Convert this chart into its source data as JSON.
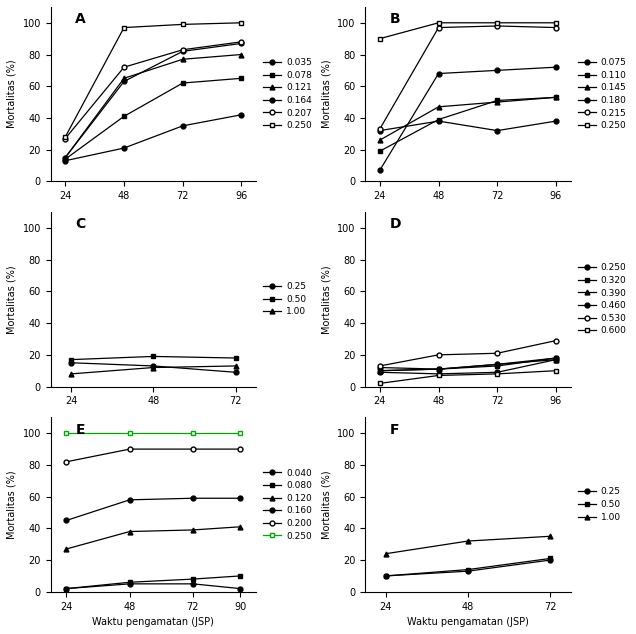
{
  "panels": {
    "A": {
      "x": [
        24,
        48,
        72,
        96
      ],
      "series": [
        {
          "label": "0.035",
          "y": [
            13,
            21,
            35,
            42
          ],
          "marker": "o",
          "linestyle": "-"
        },
        {
          "label": "0.078",
          "y": [
            14,
            41,
            62,
            65
          ],
          "marker": "s",
          "linestyle": "-"
        },
        {
          "label": "0.121",
          "y": [
            15,
            65,
            77,
            80
          ],
          "marker": "^",
          "linestyle": "-"
        },
        {
          "label": "0.164",
          "y": [
            15,
            63,
            82,
            87
          ],
          "marker": "o",
          "linestyle": "-"
        },
        {
          "label": "0.207",
          "y": [
            27,
            72,
            83,
            88
          ],
          "marker": "o",
          "linestyle": "-",
          "open": true
        },
        {
          "label": "0.250",
          "y": [
            28,
            97,
            99,
            100
          ],
          "marker": "s",
          "linestyle": "-",
          "open": true
        }
      ],
      "ylabel": "Mortalitas (%)",
      "xlabel": "",
      "xlim": [
        18,
        102
      ],
      "ylim": [
        0,
        110
      ],
      "xticks": [
        24,
        48,
        72,
        96
      ],
      "yticks": [
        0,
        20,
        40,
        60,
        80,
        100
      ],
      "label": "A"
    },
    "B": {
      "x": [
        24,
        48,
        72,
        96
      ],
      "series": [
        {
          "label": "0.075",
          "y": [
            7,
            68,
            70,
            72
          ],
          "marker": "o",
          "linestyle": "-"
        },
        {
          "label": "0.110",
          "y": [
            19,
            39,
            51,
            53
          ],
          "marker": "s",
          "linestyle": "-"
        },
        {
          "label": "0.145",
          "y": [
            26,
            47,
            50,
            53
          ],
          "marker": "^",
          "linestyle": "-"
        },
        {
          "label": "0.180",
          "y": [
            32,
            38,
            32,
            38
          ],
          "marker": "o",
          "linestyle": "-"
        },
        {
          "label": "0.215",
          "y": [
            33,
            97,
            98,
            97
          ],
          "marker": "o",
          "linestyle": "-",
          "open": true
        },
        {
          "label": "0.250",
          "y": [
            90,
            100,
            100,
            100
          ],
          "marker": "s",
          "linestyle": "-",
          "open": true
        }
      ],
      "ylabel": "Mortalitas (%)",
      "xlabel": "",
      "xlim": [
        18,
        102
      ],
      "ylim": [
        0,
        110
      ],
      "xticks": [
        24,
        48,
        72,
        96
      ],
      "yticks": [
        0,
        20,
        40,
        60,
        80,
        100
      ],
      "label": "B"
    },
    "C": {
      "x": [
        24,
        48,
        72
      ],
      "series": [
        {
          "label": "0.25",
          "y": [
            15,
            13,
            9
          ],
          "marker": "o",
          "linestyle": "-"
        },
        {
          "label": "0.50",
          "y": [
            17,
            19,
            18
          ],
          "marker": "s",
          "linestyle": "-"
        },
        {
          "label": "1.00",
          "y": [
            8,
            12,
            13
          ],
          "marker": "^",
          "linestyle": "-"
        }
      ],
      "ylabel": "Mortalitas (%)",
      "xlabel": "",
      "xlim": [
        18,
        78
      ],
      "ylim": [
        0,
        110
      ],
      "xticks": [
        24,
        48,
        72
      ],
      "yticks": [
        0,
        20,
        40,
        60,
        80,
        100
      ],
      "label": "C"
    },
    "D": {
      "x": [
        24,
        48,
        72,
        96
      ],
      "series": [
        {
          "label": "0.250",
          "y": [
            12,
            11,
            14,
            18
          ],
          "marker": "o",
          "linestyle": "-"
        },
        {
          "label": "0.320",
          "y": [
            10,
            11,
            13,
            18
          ],
          "marker": "s",
          "linestyle": "-"
        },
        {
          "label": "0.390",
          "y": [
            10,
            11,
            14,
            17
          ],
          "marker": "^",
          "linestyle": "-"
        },
        {
          "label": "0.460",
          "y": [
            9,
            8,
            9,
            17
          ],
          "marker": "o",
          "linestyle": "-"
        },
        {
          "label": "0.530",
          "y": [
            13,
            20,
            21,
            29
          ],
          "marker": "o",
          "linestyle": "-",
          "open": true
        },
        {
          "label": "0.600",
          "y": [
            2,
            7,
            8,
            10
          ],
          "marker": "s",
          "linestyle": "-",
          "open": true
        }
      ],
      "ylabel": "Mortalitas (%)",
      "xlabel": "",
      "xlim": [
        18,
        102
      ],
      "ylim": [
        0,
        110
      ],
      "xticks": [
        24,
        48,
        72,
        96
      ],
      "yticks": [
        0,
        20,
        40,
        60,
        80,
        100
      ],
      "label": "D"
    },
    "E": {
      "x": [
        24,
        48,
        72,
        90
      ],
      "series": [
        {
          "label": "0.040",
          "y": [
            2,
            5,
            5,
            2
          ],
          "marker": "o",
          "linestyle": "-"
        },
        {
          "label": "0.080",
          "y": [
            2,
            6,
            8,
            10
          ],
          "marker": "s",
          "linestyle": "-"
        },
        {
          "label": "0.120",
          "y": [
            27,
            38,
            39,
            41
          ],
          "marker": "^",
          "linestyle": "-"
        },
        {
          "label": "0.160",
          "y": [
            45,
            58,
            59,
            59
          ],
          "marker": "o",
          "linestyle": "-"
        },
        {
          "label": "0.200",
          "y": [
            82,
            90,
            90,
            90
          ],
          "marker": "o",
          "linestyle": "-",
          "open": true
        },
        {
          "label": "0.250",
          "y": [
            100,
            100,
            100,
            100
          ],
          "marker": "s",
          "linestyle": "-",
          "open": true,
          "green": true
        }
      ],
      "ylabel": "Mortalitas (%)",
      "xlabel": "Waktu pengamatan (JSP)",
      "xlim": [
        18,
        96
      ],
      "ylim": [
        0,
        110
      ],
      "xticks": [
        24,
        48,
        72,
        90
      ],
      "yticks": [
        0,
        20,
        40,
        60,
        80,
        100
      ],
      "label": "E"
    },
    "F": {
      "x": [
        24,
        48,
        72
      ],
      "series": [
        {
          "label": "0.25",
          "y": [
            10,
            13,
            20
          ],
          "marker": "o",
          "linestyle": "-"
        },
        {
          "label": "0.50",
          "y": [
            10,
            14,
            21
          ],
          "marker": "s",
          "linestyle": "-"
        },
        {
          "label": "1.00",
          "y": [
            24,
            32,
            35
          ],
          "marker": "^",
          "linestyle": "-"
        }
      ],
      "ylabel": "Mortalitas (%)",
      "xlabel": "Waktu pengamatan (JSP)",
      "xlim": [
        18,
        78
      ],
      "ylim": [
        0,
        110
      ],
      "xticks": [
        24,
        48,
        72
      ],
      "yticks": [
        0,
        20,
        40,
        60,
        80,
        100
      ],
      "label": "F"
    }
  },
  "panel_order": [
    "A",
    "B",
    "C",
    "D",
    "E",
    "F"
  ],
  "background_color": "#ffffff",
  "line_color": "#000000",
  "fontsize_label": 7,
  "fontsize_tick": 7,
  "fontsize_legend": 6.5,
  "fontsize_panel_label": 10
}
